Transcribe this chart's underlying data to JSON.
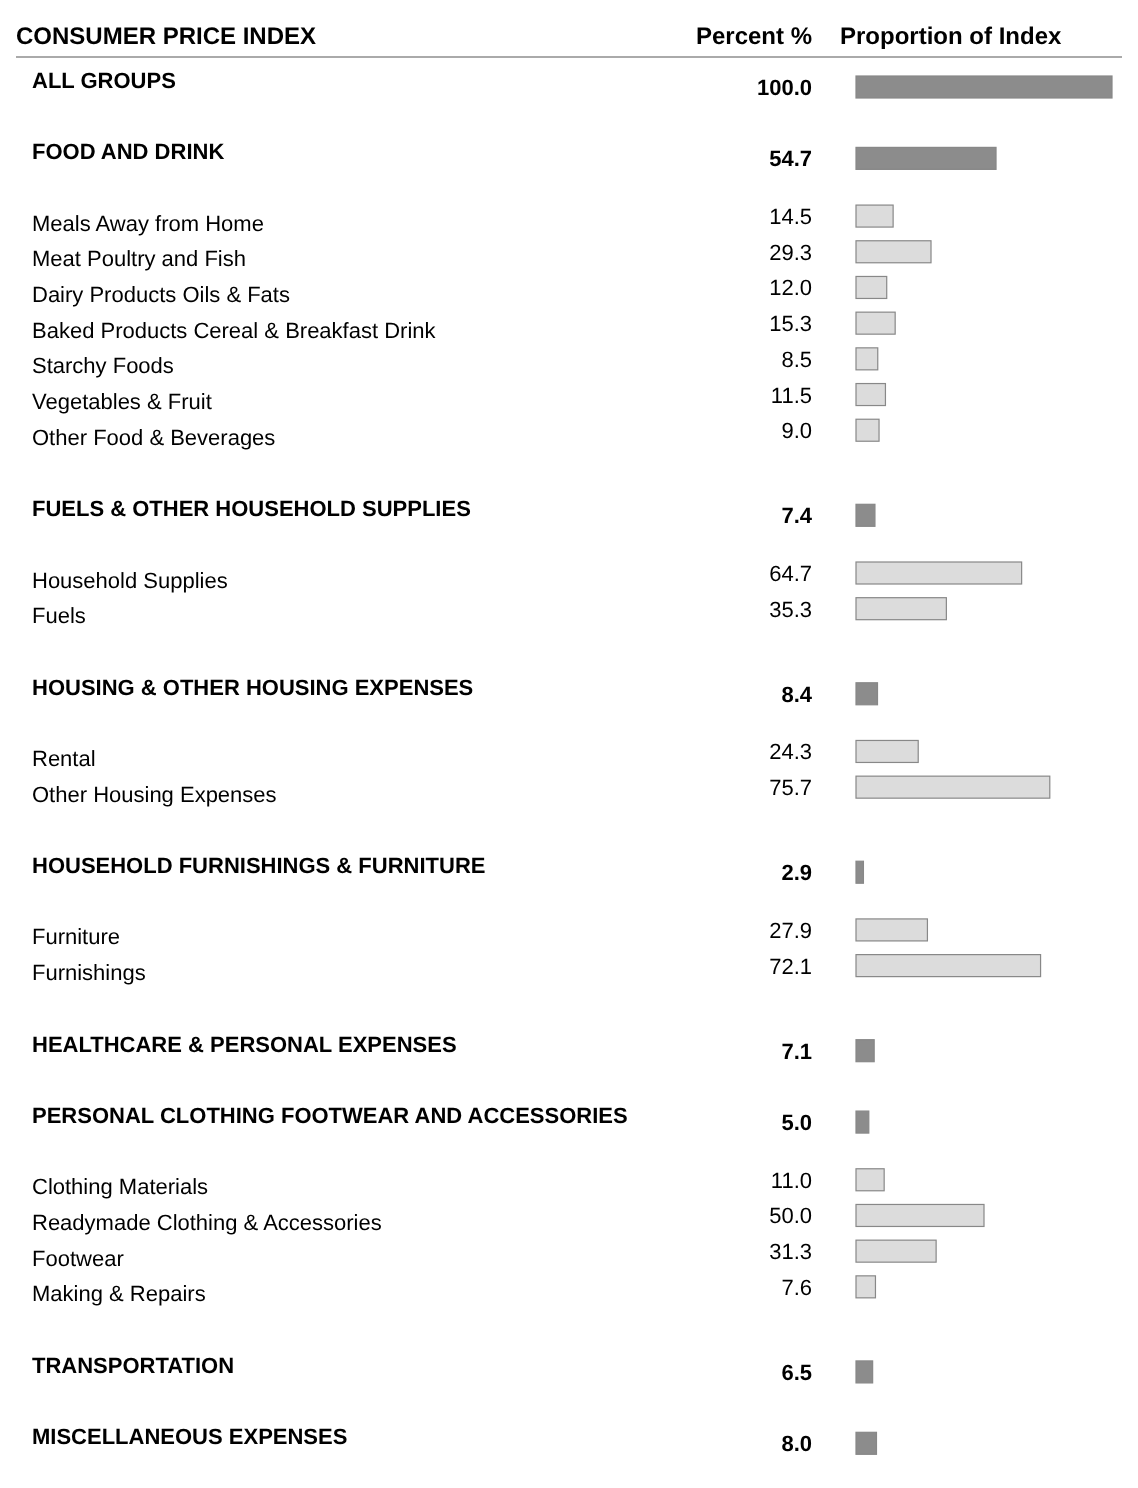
{
  "chart_data": {
    "type": "bar",
    "orientation": "horizontal",
    "title": "CONSUMER PRICE INDEX",
    "xlabel": "Proportion of Index",
    "annotations": [
      "Percent %"
    ],
    "tick_labels": "y",
    "categories": [
      "ALL GROUPS",
      null,
      "FOOD AND DRINK",
      null,
      "Meals Away from Home",
      "Meat Poultry and Fish",
      "Dairy Products Oils & Fats",
      "Baked Products Cereal & Breakfast Drink",
      "Starchy Foods",
      "Vegetables & Fruit",
      "Other Food & Beverages",
      null,
      "FUELS & OTHER HOUSEHOLD SUPPLIES",
      null,
      "Household Supplies",
      "Fuels",
      null,
      "HOUSING & OTHER HOUSING EXPENSES",
      null,
      "Rental",
      "Other Housing Expenses",
      null,
      "HOUSEHOLD FURNISHINGS & FURNITURE",
      null,
      "Furniture",
      "Furnishings",
      null,
      "HEALTHCARE & PERSONAL EXPENSES",
      null,
      "PERSONAL CLOTHING FOOTWEAR AND ACCESSORIES",
      null,
      "Clothing Materials",
      "Readymade Clothing & Accessories",
      "Footwear",
      "Making & Repairs",
      null,
      "TRANSPORTATION",
      null,
      "MISCELLANEOUS EXPENSES"
    ],
    "series": [
      {
        "color": "#8c8c8c",
        "values": [
          100.0,
          null,
          54.7,
          null,
          null,
          null,
          null,
          null,
          null,
          null,
          null,
          null,
          7.4,
          null,
          null,
          null,
          null,
          8.4,
          null,
          null,
          null,
          null,
          2.9,
          null,
          null,
          null,
          null,
          7.1,
          null,
          5.0,
          null,
          null,
          null,
          null,
          null,
          null,
          6.5,
          null,
          8.0
        ],
        "value_labels": [
          "100.0",
          null,
          "54.7",
          null,
          null,
          null,
          null,
          null,
          null,
          null,
          null,
          null,
          "7.4",
          null,
          null,
          null,
          null,
          "8.4",
          null,
          null,
          null,
          null,
          "2.9",
          null,
          null,
          null,
          null,
          "7.1",
          null,
          "5.0",
          null,
          null,
          null,
          null,
          null,
          null,
          "6.5",
          null,
          "8.0"
        ]
      },
      {
        "color": "#dcdcdc",
        "values": [
          null,
          null,
          null,
          null,
          14.5,
          29.3,
          12.0,
          15.3,
          8.5,
          11.5,
          9.0,
          null,
          null,
          null,
          64.7,
          35.3,
          null,
          null,
          null,
          24.3,
          75.7,
          null,
          null,
          null,
          27.9,
          72.1,
          null,
          null,
          null,
          null,
          null,
          11.0,
          50.0,
          31.3,
          7.6,
          null,
          null,
          null,
          null
        ],
        "value_labels": [
          null,
          null,
          null,
          null,
          "14.5",
          "29.3",
          "12.0",
          "15.3",
          "8.5",
          "11.5",
          "9.0",
          null,
          null,
          null,
          "64.7",
          "35.3",
          null,
          null,
          null,
          "24.3",
          "75.7",
          null,
          null,
          null,
          "27.9",
          "72.1",
          null,
          null,
          null,
          null,
          null,
          "11.0",
          "50.0",
          "31.3",
          "7.6",
          null,
          null,
          null,
          null
        ]
      }
    ]
  }
}
